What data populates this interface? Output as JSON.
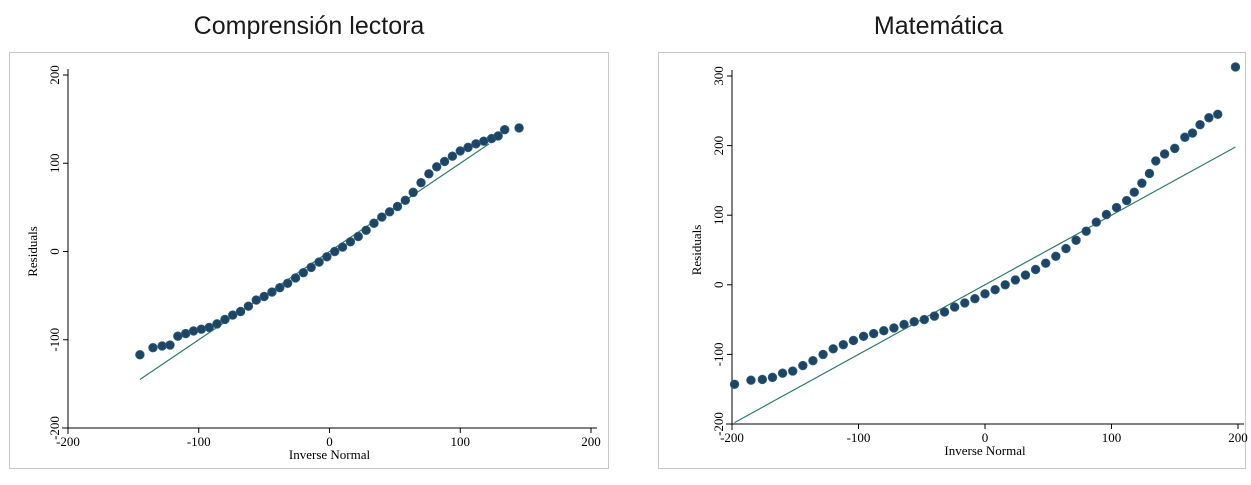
{
  "colors": {
    "marker": "#1e4566",
    "marker_stroke": "#2b5f7a",
    "reference_line": "#2e7d6b",
    "frame_border": "#c8c8c8"
  },
  "chart_data": [
    {
      "type": "scatter",
      "title": "Comprensión lectora",
      "xlabel": "Inverse Normal",
      "ylabel": "Residuals",
      "xlim": [
        -200,
        200
      ],
      "ylim": [
        -200,
        200
      ],
      "xticks": [
        -200,
        -100,
        0,
        100,
        200
      ],
      "yticks": [
        -200,
        -100,
        0,
        100,
        200
      ],
      "x_tick_labels": [
        "-200",
        "-100",
        "0",
        "100",
        "200"
      ],
      "y_tick_labels": [
        "-200",
        "-100",
        "0",
        "100",
        "200"
      ],
      "grid": false,
      "reference_line": {
        "x": [
          -145,
          122
        ],
        "y": [
          -145,
          122
        ]
      },
      "points": [
        {
          "x": -145,
          "y": -117
        },
        {
          "x": -135,
          "y": -109
        },
        {
          "x": -128,
          "y": -107
        },
        {
          "x": -122,
          "y": -106
        },
        {
          "x": -116,
          "y": -96
        },
        {
          "x": -110,
          "y": -93
        },
        {
          "x": -104,
          "y": -90
        },
        {
          "x": -98,
          "y": -88
        },
        {
          "x": -92,
          "y": -86
        },
        {
          "x": -86,
          "y": -82
        },
        {
          "x": -80,
          "y": -77
        },
        {
          "x": -74,
          "y": -72
        },
        {
          "x": -68,
          "y": -68
        },
        {
          "x": -62,
          "y": -62
        },
        {
          "x": -56,
          "y": -55
        },
        {
          "x": -50,
          "y": -51
        },
        {
          "x": -44,
          "y": -46
        },
        {
          "x": -38,
          "y": -41
        },
        {
          "x": -32,
          "y": -36
        },
        {
          "x": -26,
          "y": -30
        },
        {
          "x": -20,
          "y": -24
        },
        {
          "x": -14,
          "y": -18
        },
        {
          "x": -8,
          "y": -12
        },
        {
          "x": -2,
          "y": -6
        },
        {
          "x": 4,
          "y": 0
        },
        {
          "x": 10,
          "y": 5
        },
        {
          "x": 16,
          "y": 11
        },
        {
          "x": 22,
          "y": 17
        },
        {
          "x": 28,
          "y": 24
        },
        {
          "x": 34,
          "y": 32
        },
        {
          "x": 40,
          "y": 39
        },
        {
          "x": 46,
          "y": 45
        },
        {
          "x": 52,
          "y": 51
        },
        {
          "x": 58,
          "y": 58
        },
        {
          "x": 64,
          "y": 67
        },
        {
          "x": 70,
          "y": 78
        },
        {
          "x": 76,
          "y": 88
        },
        {
          "x": 82,
          "y": 96
        },
        {
          "x": 88,
          "y": 102
        },
        {
          "x": 94,
          "y": 108
        },
        {
          "x": 100,
          "y": 114
        },
        {
          "x": 106,
          "y": 118
        },
        {
          "x": 112,
          "y": 122
        },
        {
          "x": 118,
          "y": 125
        },
        {
          "x": 124,
          "y": 128
        },
        {
          "x": 129,
          "y": 131
        },
        {
          "x": 134,
          "y": 138
        },
        {
          "x": 145,
          "y": 140
        }
      ]
    },
    {
      "type": "scatter",
      "title": "Matemática",
      "xlabel": "Inverse Normal",
      "ylabel": "Residuals",
      "xlim": [
        -200,
        200
      ],
      "ylim": [
        -200,
        300
      ],
      "xticks": [
        -200,
        -100,
        0,
        100,
        200
      ],
      "yticks": [
        -200,
        -100,
        0,
        100,
        200,
        300
      ],
      "x_tick_labels": [
        "-200",
        "-100",
        "0",
        "100",
        "200"
      ],
      "y_tick_labels": [
        "-200",
        "-100",
        "0",
        "100",
        "200",
        "300"
      ],
      "grid": false,
      "reference_line": {
        "x": [
          -198,
          198
        ],
        "y": [
          -198,
          198
        ]
      },
      "points": [
        {
          "x": -198,
          "y": -143
        },
        {
          "x": -185,
          "y": -137
        },
        {
          "x": -176,
          "y": -136
        },
        {
          "x": -168,
          "y": -133
        },
        {
          "x": -160,
          "y": -127
        },
        {
          "x": -152,
          "y": -124
        },
        {
          "x": -144,
          "y": -116
        },
        {
          "x": -136,
          "y": -109
        },
        {
          "x": -128,
          "y": -100
        },
        {
          "x": -120,
          "y": -92
        },
        {
          "x": -112,
          "y": -86
        },
        {
          "x": -104,
          "y": -80
        },
        {
          "x": -96,
          "y": -74
        },
        {
          "x": -88,
          "y": -70
        },
        {
          "x": -80,
          "y": -66
        },
        {
          "x": -72,
          "y": -62
        },
        {
          "x": -64,
          "y": -57
        },
        {
          "x": -56,
          "y": -53
        },
        {
          "x": -48,
          "y": -50
        },
        {
          "x": -40,
          "y": -45
        },
        {
          "x": -32,
          "y": -39
        },
        {
          "x": -24,
          "y": -32
        },
        {
          "x": -16,
          "y": -26
        },
        {
          "x": -8,
          "y": -20
        },
        {
          "x": 0,
          "y": -13
        },
        {
          "x": 8,
          "y": -7
        },
        {
          "x": 16,
          "y": 0
        },
        {
          "x": 24,
          "y": 7
        },
        {
          "x": 32,
          "y": 14
        },
        {
          "x": 40,
          "y": 22
        },
        {
          "x": 48,
          "y": 31
        },
        {
          "x": 56,
          "y": 41
        },
        {
          "x": 64,
          "y": 52
        },
        {
          "x": 72,
          "y": 64
        },
        {
          "x": 80,
          "y": 77
        },
        {
          "x": 88,
          "y": 90
        },
        {
          "x": 96,
          "y": 101
        },
        {
          "x": 104,
          "y": 111
        },
        {
          "x": 112,
          "y": 121
        },
        {
          "x": 118,
          "y": 133
        },
        {
          "x": 124,
          "y": 146
        },
        {
          "x": 130,
          "y": 160
        },
        {
          "x": 135,
          "y": 178
        },
        {
          "x": 142,
          "y": 188
        },
        {
          "x": 150,
          "y": 196
        },
        {
          "x": 158,
          "y": 212
        },
        {
          "x": 164,
          "y": 218
        },
        {
          "x": 170,
          "y": 230
        },
        {
          "x": 177,
          "y": 240
        },
        {
          "x": 184,
          "y": 245
        },
        {
          "x": 198,
          "y": 313
        }
      ]
    }
  ]
}
